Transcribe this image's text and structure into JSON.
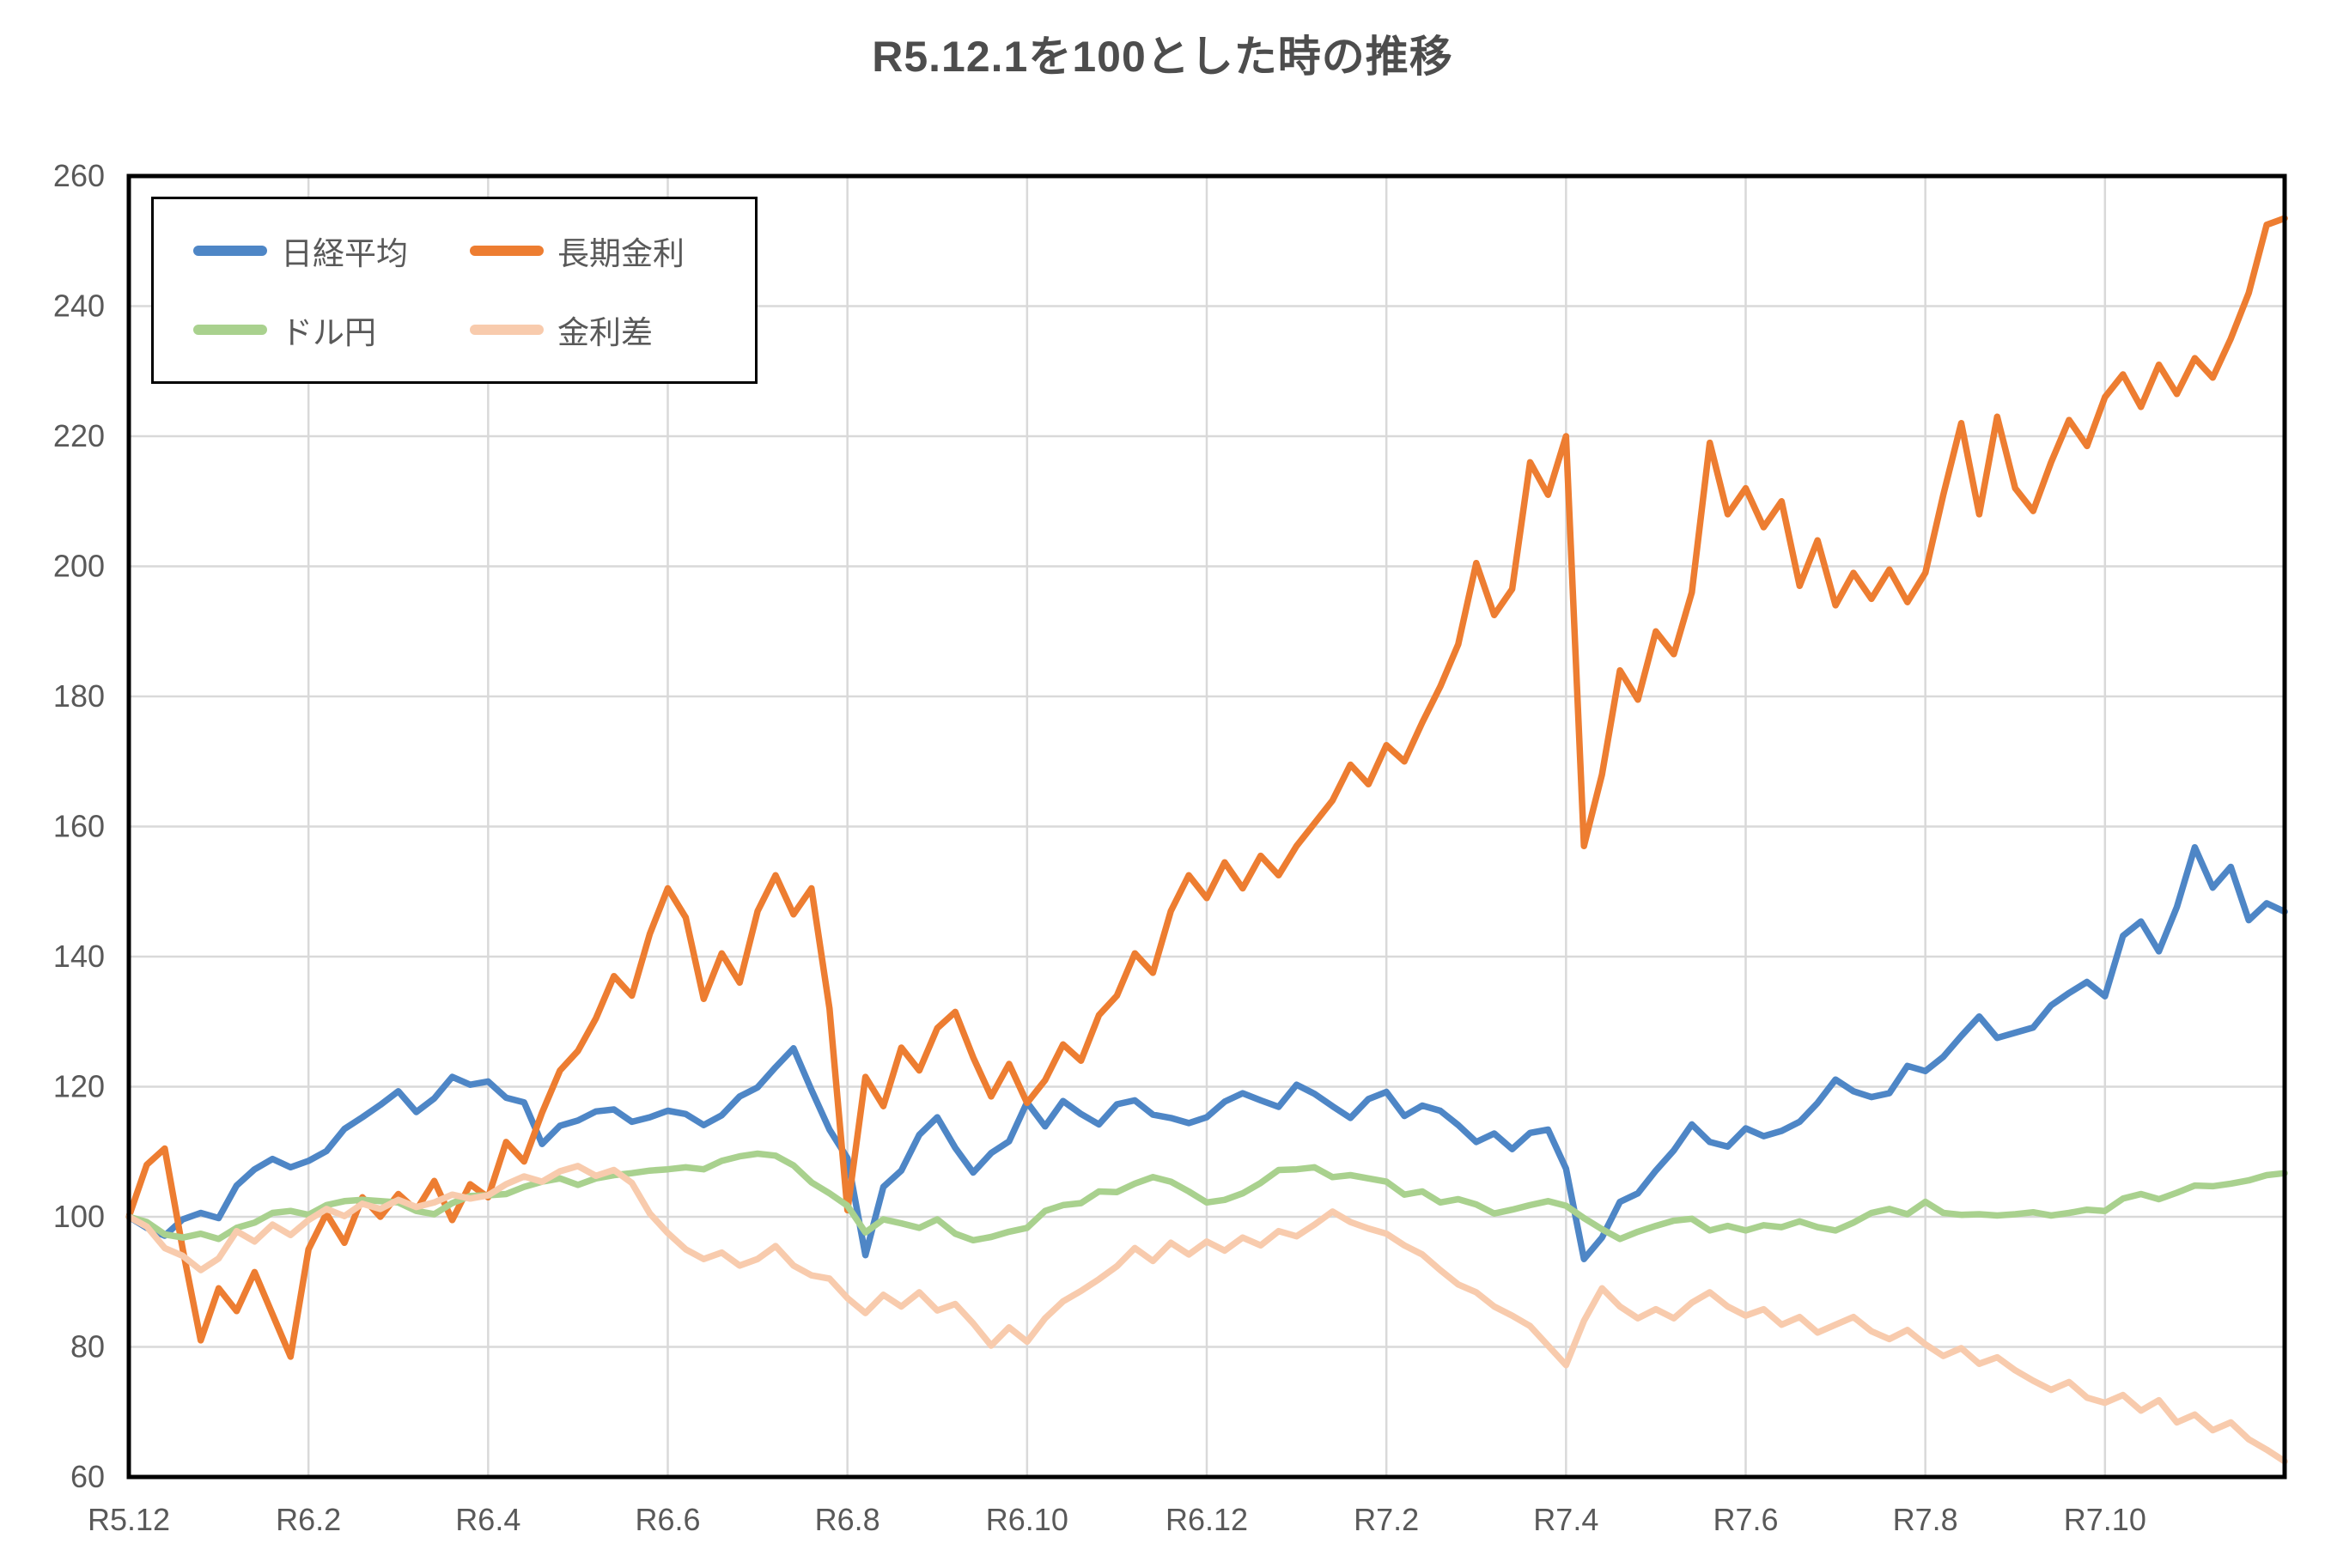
{
  "title": "R5.12.1を100とした時の推移",
  "chart_data": {
    "type": "line",
    "title": "R5.12.1を100とした時の推移",
    "grid": true,
    "legend_position": "top-left-inside",
    "x_axis": {
      "unit": "months since R5.12.1",
      "start_month": 0,
      "end_month": 24,
      "months_per_point": 0.2,
      "tick_positions_months": [
        0,
        2,
        4,
        6,
        8,
        10,
        12,
        14,
        16,
        18,
        20,
        22
      ],
      "tick_labels": [
        "R5.12",
        "R6.2",
        "R6.4",
        "R6.6",
        "R6.8",
        "R6.10",
        "R6.12",
        "R7.2",
        "R7.4",
        "R7.6",
        "R7.8",
        "R7.10"
      ]
    },
    "y_axis": {
      "min": 60,
      "max": 260,
      "tick_step": 20,
      "tick_labels": [
        "60",
        "80",
        "100",
        "120",
        "140",
        "160",
        "180",
        "200",
        "220",
        "240",
        "260"
      ]
    },
    "series": [
      {
        "name": "日経平均",
        "id": "nikkei",
        "color": "#4E86C6",
        "values": [
          100,
          98.3,
          97.1,
          99.6,
          100.6,
          99.8,
          104.8,
          107.3,
          108.9,
          107.6,
          108.6,
          110.1,
          113.5,
          115.3,
          117.2,
          119.3,
          116.1,
          118.2,
          121.5,
          120.3,
          120.8,
          118.3,
          117.6,
          111.2,
          114,
          114.8,
          116.2,
          116.5,
          114.6,
          115.3,
          116.3,
          115.8,
          114.1,
          115.6,
          118.5,
          119.9,
          123,
          125.9,
          119.5,
          113.4,
          109,
          94.1,
          104.6,
          107.1,
          112.6,
          115.3,
          110.6,
          106.8,
          109.8,
          111.6,
          117.6,
          113.9,
          117.8,
          115.8,
          114.2,
          117.3,
          117.9,
          115.7,
          115.2,
          114.4,
          115.3,
          117.7,
          119,
          117.9,
          116.9,
          120.3,
          118.9,
          117,
          115.2,
          118.1,
          119.2,
          115.5,
          117.1,
          116.3,
          114.1,
          111.5,
          112.8,
          110.4,
          112.9,
          113.4,
          107.4,
          93.5,
          96.8,
          102.3,
          103.6,
          107.1,
          110.2,
          114.2,
          111.5,
          110.8,
          113.6,
          112.4,
          113.2,
          114.6,
          117.5,
          121.1,
          119.3,
          118.4,
          119,
          123.2,
          122.4,
          124.6,
          127.8,
          130.8,
          127.5,
          128.3,
          129.1,
          132.5,
          134.4,
          136.1,
          133.9,
          143.2,
          145.4,
          140.8,
          147.6,
          156.8,
          150.6,
          153.8,
          145.6,
          148.2,
          146.9
        ]
      },
      {
        "name": "長期金利",
        "id": "long-term-rate",
        "color": "#ED7D31",
        "values": [
          100,
          108,
          110.5,
          95,
          81,
          89,
          85.5,
          91.5,
          85,
          78.5,
          95,
          100.5,
          96,
          103,
          100,
          103.5,
          101,
          105.5,
          99.5,
          105,
          103,
          111.5,
          108.5,
          116,
          122.5,
          125.5,
          130.5,
          137,
          134,
          143.5,
          150.5,
          146,
          133.5,
          140.5,
          136,
          147,
          152.5,
          146.5,
          150.5,
          132,
          101,
          121.5,
          117,
          126,
          122.5,
          129,
          131.5,
          124.5,
          118.5,
          123.5,
          117.5,
          121,
          126.5,
          124,
          131,
          134,
          140.5,
          137.5,
          147,
          152.5,
          149,
          154.5,
          150.5,
          155.5,
          152.5,
          157,
          160.5,
          164,
          169.5,
          166.5,
          172.5,
          170,
          176,
          181.5,
          188,
          200.5,
          192.5,
          196.5,
          216,
          211,
          220,
          157,
          168,
          184,
          179.5,
          190,
          186.5,
          196,
          219,
          208,
          212,
          206,
          210,
          197,
          204,
          194,
          199,
          195,
          199.5,
          194.5,
          199,
          211,
          222,
          208,
          223,
          212,
          208.5,
          216,
          222.5,
          218.5,
          226,
          229.5,
          224.5,
          231,
          226.5,
          232,
          229,
          235,
          242,
          252.5,
          253.5
        ]
      },
      {
        "name": "ドル円",
        "id": "usd-jpy",
        "color": "#A9D18E",
        "values": [
          100,
          99.2,
          97.3,
          96.8,
          97.4,
          96.6,
          98.3,
          99.1,
          100.6,
          100.9,
          100.3,
          101.8,
          102.4,
          102.6,
          102.4,
          102.2,
          100.9,
          100.4,
          102.1,
          103.2,
          103.3,
          103.5,
          104.6,
          105.4,
          105.9,
          104.9,
          105.9,
          106.4,
          106.7,
          107.1,
          107.3,
          107.6,
          107.3,
          108.6,
          109.3,
          109.7,
          109.4,
          107.9,
          105.3,
          103.6,
          101.7,
          97.6,
          99.6,
          99,
          98.3,
          99.6,
          97.4,
          96.4,
          96.9,
          97.7,
          98.3,
          100.9,
          101.8,
          102.1,
          103.9,
          103.8,
          105.1,
          106.1,
          105.4,
          103.9,
          102.2,
          102.6,
          103.6,
          105.2,
          107.2,
          107.3,
          107.6,
          106.1,
          106.4,
          105.9,
          105.4,
          103.4,
          103.9,
          102.2,
          102.7,
          101.9,
          100.5,
          101.1,
          101.8,
          102.4,
          101.7,
          99.8,
          98.1,
          96.6,
          97.7,
          98.6,
          99.4,
          99.7,
          97.9,
          98.6,
          97.9,
          98.7,
          98.4,
          99.3,
          98.4,
          97.9,
          99.1,
          100.6,
          101.2,
          100.4,
          102.3,
          100.6,
          100.3,
          100.4,
          100.2,
          100.4,
          100.7,
          100.2,
          100.6,
          101.1,
          100.9,
          102.8,
          103.5,
          102.7,
          103.7,
          104.8,
          104.7,
          105.1,
          105.6,
          106.4,
          106.7
        ]
      },
      {
        "name": "金利差",
        "id": "rate-differential",
        "color": "#F8CBAD",
        "values": [
          100,
          98.5,
          95.2,
          94,
          91.8,
          93.6,
          97.8,
          96.2,
          98.8,
          97.2,
          99.5,
          101.2,
          100.1,
          102,
          101.2,
          102.6,
          101.5,
          102.2,
          103.4,
          102.8,
          103.3,
          105,
          106.2,
          105.4,
          107,
          107.8,
          106.3,
          107.2,
          105.2,
          100.5,
          97.5,
          95,
          93.5,
          94.5,
          92.5,
          93.5,
          95.5,
          92.5,
          91,
          90.5,
          87.5,
          85.2,
          88,
          86.2,
          88.4,
          85.6,
          86.6,
          83.6,
          80.2,
          83,
          80.8,
          84.4,
          87,
          88.6,
          90.4,
          92.4,
          95.2,
          93.2,
          96,
          94.2,
          96.2,
          94.8,
          96.8,
          95.6,
          97.8,
          97,
          98.8,
          100.8,
          99.2,
          98.2,
          97.4,
          95.6,
          94.2,
          91.8,
          89.6,
          88.4,
          86.2,
          84.8,
          83.2,
          80.2,
          77.2,
          84,
          89,
          86.2,
          84.4,
          85.8,
          84.4,
          86.8,
          88.4,
          86.2,
          84.8,
          85.8,
          83.4,
          84.6,
          82.2,
          83.4,
          84.6,
          82.4,
          81.2,
          82.6,
          80.4,
          78.6,
          79.8,
          77.4,
          78.4,
          76.4,
          74.8,
          73.4,
          74.6,
          72.2,
          71.4,
          72.6,
          70.2,
          71.8,
          68.4,
          69.6,
          67.2,
          68.4,
          65.8,
          64.2,
          62.4
        ]
      }
    ]
  },
  "style": {
    "plot_border_color": "#000000",
    "gridline_color": "#D9D9D9",
    "tick_label_color": "#595959",
    "title_color": "#4d4d4d",
    "background": "#ffffff"
  }
}
